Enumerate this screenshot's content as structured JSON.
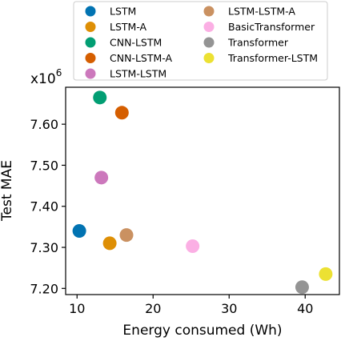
{
  "chart_data": {
    "type": "scatter",
    "xlabel": "Energy consumed (Wh)",
    "ylabel": "Test MAE",
    "y_multiplier": "x10",
    "y_multiplier_exp": "6",
    "xlim": [
      8.5,
      44.5
    ],
    "ylim": [
      7.185,
      7.69
    ],
    "x_ticks": [
      {
        "value": 10,
        "label": "10"
      },
      {
        "value": 20,
        "label": "20"
      },
      {
        "value": 30,
        "label": "30"
      },
      {
        "value": 40,
        "label": "40"
      }
    ],
    "y_ticks": [
      {
        "value": 7.2,
        "label": "7.20"
      },
      {
        "value": 7.3,
        "label": "7.30"
      },
      {
        "value": 7.4,
        "label": "7.40"
      },
      {
        "value": 7.5,
        "label": "7.50"
      },
      {
        "value": 7.6,
        "label": "7.60"
      }
    ],
    "grid": false,
    "legend_position": "top",
    "series": [
      {
        "name": "LSTM",
        "color": "#0173b2",
        "x": 10.3,
        "y": 7.34
      },
      {
        "name": "LSTM-A",
        "color": "#de8f05",
        "x": 14.3,
        "y": 7.31
      },
      {
        "name": "CNN-LSTM",
        "color": "#029e73",
        "x": 13.0,
        "y": 7.665
      },
      {
        "name": "CNN-LSTM-A",
        "color": "#d55e00",
        "x": 15.9,
        "y": 7.628
      },
      {
        "name": "LSTM-LSTM",
        "color": "#cc78bc",
        "x": 13.2,
        "y": 7.47
      },
      {
        "name": "LSTM-LSTM-A",
        "color": "#ca9161",
        "x": 16.5,
        "y": 7.33
      },
      {
        "name": "BasicTransformer",
        "color": "#fbafe4",
        "x": 25.2,
        "y": 7.303
      },
      {
        "name": "Transformer",
        "color": "#949494",
        "x": 39.6,
        "y": 7.203
      },
      {
        "name": "Transformer-LSTM",
        "color": "#ece133",
        "x": 42.7,
        "y": 7.235
      }
    ]
  }
}
